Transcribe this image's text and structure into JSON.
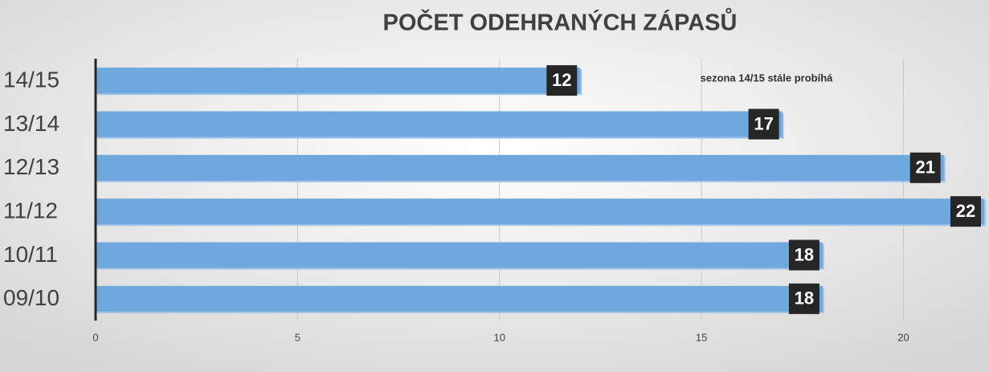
{
  "chart_data": {
    "type": "bar",
    "orientation": "horizontal",
    "title": "POČET ODEHRANÝCH ZÁPASŮ",
    "annotation": "sezona 14/15 stále probíhá",
    "categories": [
      "14/15",
      "13/14",
      "12/13",
      "11/12",
      "10/11",
      "09/10"
    ],
    "values": [
      12,
      17,
      21,
      22,
      18,
      18
    ],
    "color": "#6fa8dc",
    "xlim": [
      0,
      22
    ],
    "xticks": [
      0,
      5,
      10,
      15,
      20
    ],
    "grid": true
  }
}
